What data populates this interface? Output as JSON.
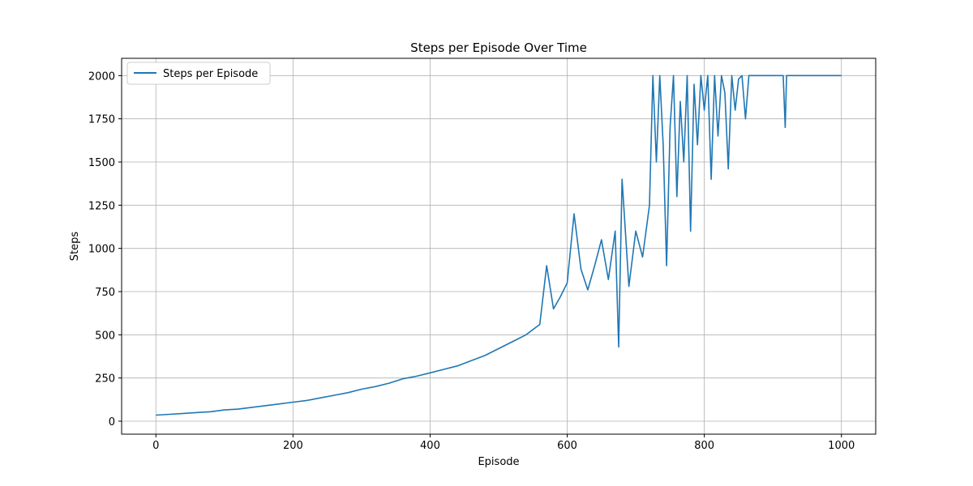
{
  "chart_data": {
    "type": "line",
    "title": "Steps per Episode Over Time",
    "xlabel": "Episode",
    "ylabel": "Steps",
    "xlim": [
      -50,
      1050
    ],
    "ylim": [
      -75,
      2100
    ],
    "xticks": [
      0,
      200,
      400,
      600,
      800,
      1000
    ],
    "yticks": [
      0,
      250,
      500,
      750,
      1000,
      1250,
      1500,
      1750,
      2000
    ],
    "grid": true,
    "legend_position": "upper-left",
    "series": [
      {
        "name": "Steps per Episode",
        "color": "#1f77b4",
        "x": [
          0,
          20,
          40,
          60,
          80,
          100,
          120,
          140,
          160,
          180,
          200,
          220,
          240,
          260,
          280,
          300,
          320,
          340,
          360,
          380,
          400,
          420,
          440,
          460,
          480,
          500,
          520,
          540,
          560,
          570,
          580,
          590,
          600,
          610,
          620,
          630,
          640,
          650,
          660,
          670,
          675,
          680,
          690,
          700,
          710,
          720,
          725,
          730,
          735,
          740,
          745,
          750,
          755,
          760,
          765,
          770,
          775,
          780,
          785,
          790,
          795,
          800,
          805,
          810,
          815,
          820,
          825,
          830,
          835,
          840,
          845,
          850,
          855,
          860,
          865,
          870,
          880,
          900,
          915,
          918,
          920,
          922,
          940,
          960,
          980,
          1000
        ],
        "y": [
          35,
          40,
          45,
          50,
          55,
          65,
          70,
          80,
          90,
          100,
          110,
          120,
          135,
          150,
          165,
          185,
          200,
          220,
          245,
          260,
          280,
          300,
          320,
          350,
          380,
          420,
          460,
          500,
          560,
          900,
          650,
          720,
          800,
          1200,
          880,
          760,
          900,
          1050,
          820,
          1100,
          430,
          1400,
          780,
          1100,
          950,
          1250,
          2000,
          1500,
          2000,
          1600,
          900,
          1700,
          2000,
          1300,
          1850,
          1500,
          2000,
          1100,
          1950,
          1600,
          2000,
          1800,
          2000,
          1400,
          2000,
          1650,
          2000,
          1900,
          1460,
          2000,
          1800,
          1980,
          2000,
          1750,
          2000,
          2000,
          2000,
          2000,
          2000,
          1700,
          2000,
          2000,
          2000,
          2000,
          2000,
          2000
        ]
      }
    ]
  }
}
